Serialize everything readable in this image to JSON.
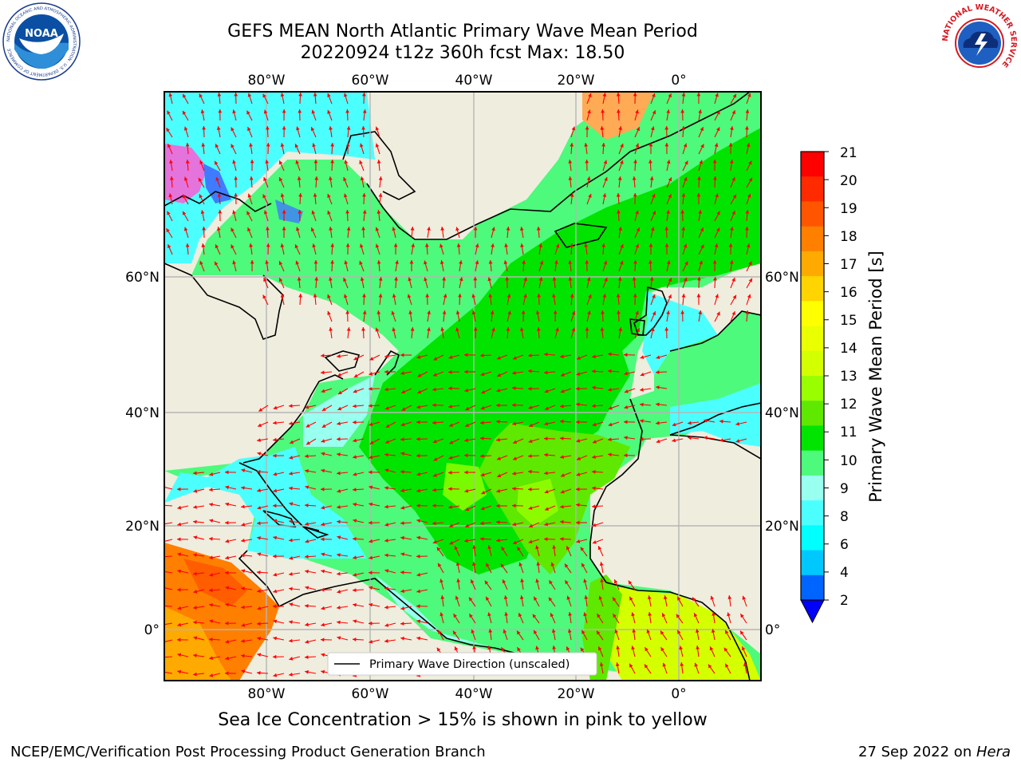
{
  "header": {
    "title_line1": "GEFS MEAN North Atlantic Primary Wave Mean Period",
    "title_line2": "20220924 t12z 360h fcst   Max: 18.50"
  },
  "logos": {
    "left": "NOAA",
    "left_ring": "NATIONAL OCEANIC AND ATMOSPHERIC ADMINISTRATION · U.S. DEPARTMENT OF COMMERCE",
    "right_ring": "NATIONAL WEATHER SERVICE"
  },
  "map": {
    "lon_labels": [
      "80°W",
      "60°W",
      "40°W",
      "20°W",
      "0°"
    ],
    "lat_labels": [
      "60°N",
      "40°N",
      "20°N",
      "0°"
    ],
    "legend_label": "Primary Wave Direction (unscaled)",
    "land_color": "#efedde",
    "arrow_color": "#ff0000"
  },
  "colorbar": {
    "label": "Primary Wave Mean Period [s]",
    "ticks": [
      "21",
      "20",
      "19",
      "18",
      "17",
      "16",
      "15",
      "14",
      "13",
      "12",
      "11",
      "10",
      "9",
      "8",
      "6",
      "4",
      "2"
    ],
    "colors": [
      "#ff0000",
      "#ff2a00",
      "#ff5500",
      "#ff7f00",
      "#ffaa00",
      "#ffd400",
      "#ffff00",
      "#eaff00",
      "#d4ff00",
      "#99ff00",
      "#5fe800",
      "#00e400",
      "#4dfa7b",
      "#99ffef",
      "#4cffff",
      "#00ffff",
      "#00c8ff",
      "#0064ff"
    ],
    "extend_color": "#0000ff"
  },
  "caption": "Sea Ice Concentration > 15% is shown in pink to yellow",
  "footer": {
    "left": "NCEP/EMC/Verification Post Processing Product Generation Branch",
    "right_prefix": "27 Sep 2022 on ",
    "right_host": "Hera"
  }
}
